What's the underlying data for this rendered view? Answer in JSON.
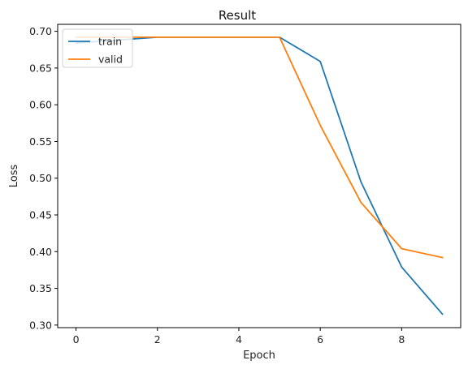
{
  "chart_data": {
    "type": "line",
    "title": "Result",
    "xlabel": "Epoch",
    "ylabel": "Loss",
    "x": [
      0,
      1,
      2,
      3,
      4,
      5,
      6,
      7,
      8,
      9
    ],
    "xlim": [
      -0.45,
      9.45
    ],
    "ylim": [
      0.2965,
      0.7095
    ],
    "xticks": [
      0,
      2,
      4,
      6,
      8
    ],
    "yticks": [
      0.3,
      0.35,
      0.4,
      0.45,
      0.5,
      0.55,
      0.6,
      0.65,
      0.7
    ],
    "grid": false,
    "legend_position": "top-left",
    "series": [
      {
        "name": "train",
        "color": "#1f77b4",
        "values": [
          0.684,
          0.688,
          0.692,
          0.692,
          0.692,
          0.692,
          0.659,
          0.495,
          0.379,
          0.315
        ]
      },
      {
        "name": "valid",
        "color": "#ff7f0e",
        "values": [
          0.692,
          0.692,
          0.692,
          0.692,
          0.692,
          0.692,
          0.572,
          0.467,
          0.404,
          0.392
        ]
      }
    ]
  }
}
